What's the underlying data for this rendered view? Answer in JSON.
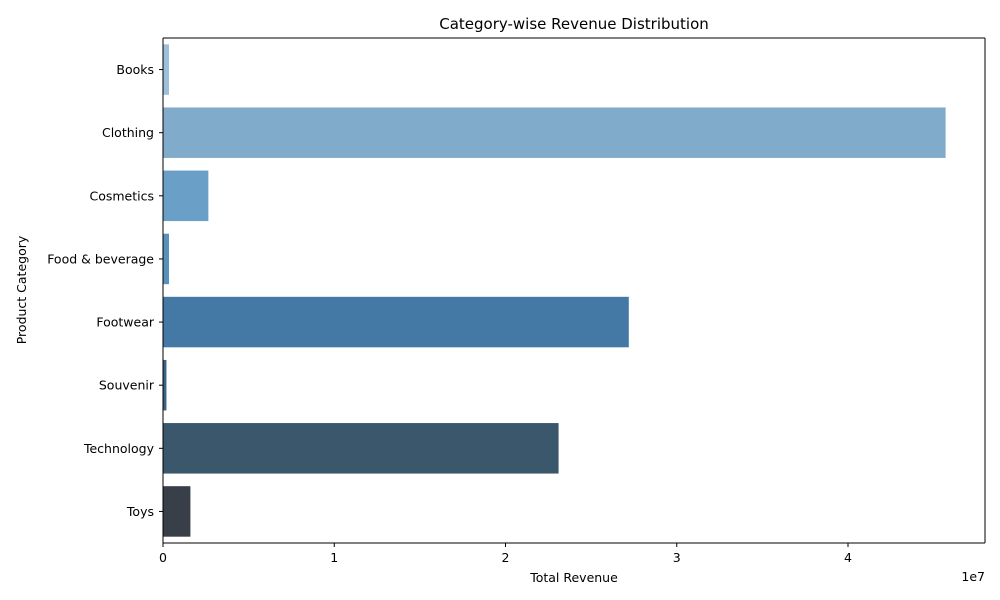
{
  "chart_data": {
    "type": "bar",
    "orientation": "horizontal",
    "title": "Category-wise Revenue Distribution",
    "xlabel": "Total Revenue",
    "ylabel": "Product Category",
    "x_scale_label": "1e7",
    "xlim": [
      0,
      48000000
    ],
    "x_ticks": [
      0,
      10000000,
      20000000,
      30000000,
      40000000
    ],
    "x_tick_labels": [
      "0",
      "1",
      "2",
      "3",
      "4"
    ],
    "categories": [
      "Books",
      "Clothing",
      "Cosmetics",
      "Food & beverage",
      "Footwear",
      "Souvenir",
      "Technology",
      "Toys"
    ],
    "values": [
      350000,
      45700000,
      2650000,
      350000,
      27200000,
      200000,
      23100000,
      1600000
    ],
    "bar_colors": [
      "#9ebfdc",
      "#80abcb",
      "#6aa0c7",
      "#5791bc",
      "#4379a4",
      "#3b6584",
      "#3b576c",
      "#383f48"
    ],
    "grid": false,
    "legend": "none"
  }
}
